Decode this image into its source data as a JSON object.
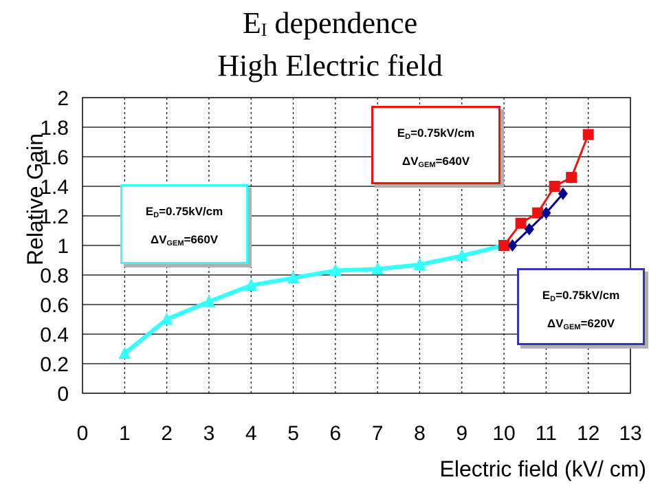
{
  "title": {
    "line1_main": "E",
    "line1_sub": "I",
    "line1_rest": " dependence",
    "line2": "High Electric field"
  },
  "chart_data": {
    "type": "line",
    "title": "E_I dependence High Electric field",
    "xlabel": "Electric field (kV/ cm)",
    "ylabel": "Relative Gain",
    "xlim": [
      0,
      13
    ],
    "ylim": [
      0,
      2
    ],
    "xticks": [
      "0",
      "1",
      "2",
      "3",
      "4",
      "5",
      "6",
      "7",
      "8",
      "9",
      "10",
      "11",
      "12",
      "13"
    ],
    "yticks": [
      "0",
      "0.2",
      "0.4",
      "0.6",
      "0.8",
      "1",
      "1.2",
      "1.4",
      "1.6",
      "1.8",
      "2"
    ],
    "grid": true,
    "series": [
      {
        "color": "#33ffff",
        "marker": "triangle",
        "x": [
          1,
          2,
          3,
          4,
          5,
          6,
          7,
          8,
          9,
          10
        ],
        "y": [
          0.27,
          0.5,
          0.62,
          0.73,
          0.78,
          0.83,
          0.84,
          0.87,
          0.93,
          1.0
        ]
      },
      {
        "color": "#ee1111",
        "marker": "square",
        "x": [
          10,
          10.4,
          10.8,
          11.2,
          11.6,
          12
        ],
        "y": [
          1.0,
          1.15,
          1.22,
          1.4,
          1.46,
          1.75
        ]
      },
      {
        "color": "#000090",
        "marker": "diamond",
        "x": [
          10.2,
          10.6,
          11,
          11.4
        ],
        "y": [
          1.0,
          1.11,
          1.22,
          1.35
        ]
      }
    ],
    "annotations": [
      {
        "line1_main": "E",
        "line1_sub": "D",
        "line1_rest": "=0.75kV/cm",
        "line2_main": "ΔV",
        "line2_sub": "GEM",
        "line2_rest": "=660V",
        "border": "#33ffff"
      },
      {
        "line1_main": "E",
        "line1_sub": "D",
        "line1_rest": "=0.75kV/cm",
        "line2_main": "ΔV",
        "line2_sub": "GEM",
        "line2_rest": "=640V",
        "border": "#ee1111"
      },
      {
        "line1_main": "E",
        "line1_sub": "D",
        "line1_rest": "=0.75kV/cm",
        "line2_main": "ΔV",
        "line2_sub": "GEM",
        "line2_rest": "=620V",
        "border": "#3333bb"
      }
    ]
  }
}
